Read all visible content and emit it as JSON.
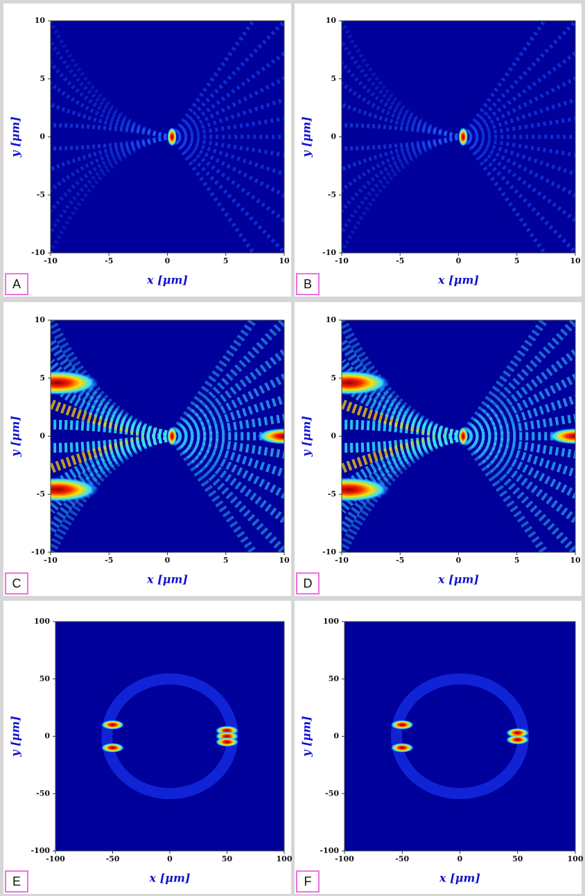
{
  "chart_data": [
    {
      "type": "heatmap",
      "label": "A",
      "xlabel": "x [μm]",
      "ylabel": "y [μm]",
      "xlim": [
        -10,
        10
      ],
      "ylim": [
        -10,
        10
      ],
      "xticks": [
        -10,
        -5,
        0,
        5,
        10
      ],
      "yticks": [
        -10,
        -5,
        0,
        5,
        10
      ]
    },
    {
      "type": "heatmap",
      "label": "B",
      "xlabel": "x [μm]",
      "ylabel": "y [μm]",
      "xlim": [
        -10,
        10
      ],
      "ylim": [
        -10,
        10
      ],
      "xticks": [
        -10,
        -5,
        0,
        5,
        10
      ],
      "yticks": [
        -10,
        -5,
        0,
        5,
        10
      ]
    },
    {
      "type": "heatmap",
      "label": "C",
      "xlabel": "x [μm]",
      "ylabel": "y [μm]",
      "xlim": [
        -10,
        10
      ],
      "ylim": [
        -10,
        10
      ],
      "xticks": [
        -10,
        -5,
        0,
        5,
        10
      ],
      "yticks": [
        -10,
        -5,
        0,
        5,
        10
      ]
    },
    {
      "type": "heatmap",
      "label": "D",
      "xlabel": "x [μm]",
      "ylabel": "y [μm]",
      "xlim": [
        -10,
        10
      ],
      "ylim": [
        -10,
        10
      ],
      "xticks": [
        -10,
        -5,
        0,
        5,
        10
      ],
      "yticks": [
        -10,
        -5,
        0,
        5,
        10
      ]
    },
    {
      "type": "heatmap",
      "label": "E",
      "xlabel": "x [μm]",
      "ylabel": "y [μm]",
      "xlim": [
        -100,
        100
      ],
      "ylim": [
        -100,
        100
      ],
      "xticks": [
        -100,
        -50,
        0,
        50,
        100
      ],
      "yticks": [
        -100,
        -50,
        0,
        50,
        100
      ]
    },
    {
      "type": "heatmap",
      "label": "F",
      "xlabel": "x [μm]",
      "ylabel": "y [μm]",
      "xlim": [
        -100,
        100
      ],
      "ylim": [
        -100,
        100
      ],
      "xticks": [
        -100,
        -50,
        0,
        50,
        100
      ],
      "yticks": [
        -100,
        -50,
        0,
        50,
        100
      ]
    }
  ]
}
